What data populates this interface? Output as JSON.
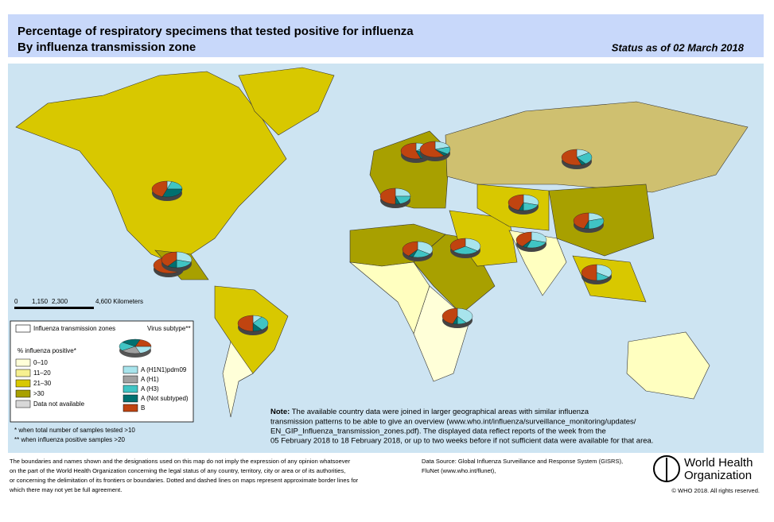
{
  "header": {
    "title": "Percentage of respiratory specimens that tested positive for influenza",
    "subtitle": "By influenza transmission zone",
    "status": "Status as of 02 March 2018"
  },
  "scale": [
    "0",
    "1,150",
    "2,300",
    "4,600 Kilometers"
  ],
  "legend": {
    "zones": "Influenza transmission zones",
    "virus": "Virus subtype**",
    "positive": "% influenza positive*",
    "classes": [
      "0–10",
      "11–20",
      "21–30",
      ">30",
      "Data not available"
    ],
    "subtypes": [
      "A (H1N1)pdm09",
      "A (H1)",
      "A (H3)",
      "A (Not subtyped)",
      "B"
    ]
  },
  "footnotes": [
    "*  when total number of samples tested >10",
    "** when influenza positive samples >20"
  ],
  "note": {
    "label": "Note:",
    "lines": [
      " The available country data were joined in larger geographical areas with similar influenza",
      "transmission patterns to be able to give an overview (www.who.int/influenza/surveillance_monitoring/updates/",
      "EN_GIP_Influenza_transmission_zones.pdf). The displayed data reflect reports of the week from the",
      "05 February 2018 to 18 February 2018, or up to two weeks before if not sufficient data were available for that area."
    ]
  },
  "disclaimer": [
    "The boundaries and names shown and the designations used on this map do not imply the expression of any opinion whatsoever",
    "on the part of the World Health Organization concerning the legal status of any country, territory, city or area or of its authorities,",
    "or concerning the delimitation of its frontiers or boundaries. Dotted and dashed lines on maps represent approximate border lines for",
    "which there may not yet be full agreement."
  ],
  "source": [
    "Data Source: Global Influenza Surveillance and Response System (GISRS),",
    "FluNet (www.who.int/flunet),"
  ],
  "who": {
    "line1": "World Health",
    "line2": "Organization",
    "copyright": "© WHO 2018. All rights reserved."
  },
  "pies": [
    [
      5,
      0,
      20,
      30,
      45
    ],
    [
      20,
      0,
      10,
      5,
      65
    ],
    [
      30,
      0,
      20,
      10,
      40
    ],
    [
      10,
      0,
      30,
      10,
      50
    ],
    [
      15,
      0,
      15,
      15,
      55
    ],
    [
      20,
      0,
      15,
      5,
      60
    ],
    [
      25,
      0,
      20,
      5,
      50
    ],
    [
      15,
      0,
      25,
      5,
      55
    ],
    [
      30,
      0,
      20,
      5,
      45
    ],
    [
      35,
      0,
      30,
      0,
      35
    ],
    [
      35,
      0,
      20,
      5,
      40
    ],
    [
      30,
      0,
      25,
      5,
      40
    ],
    [
      20,
      0,
      30,
      5,
      45
    ],
    [
      35,
      0,
      15,
      0,
      50
    ],
    [
      40,
      0,
      10,
      5,
      45
    ]
  ]
}
